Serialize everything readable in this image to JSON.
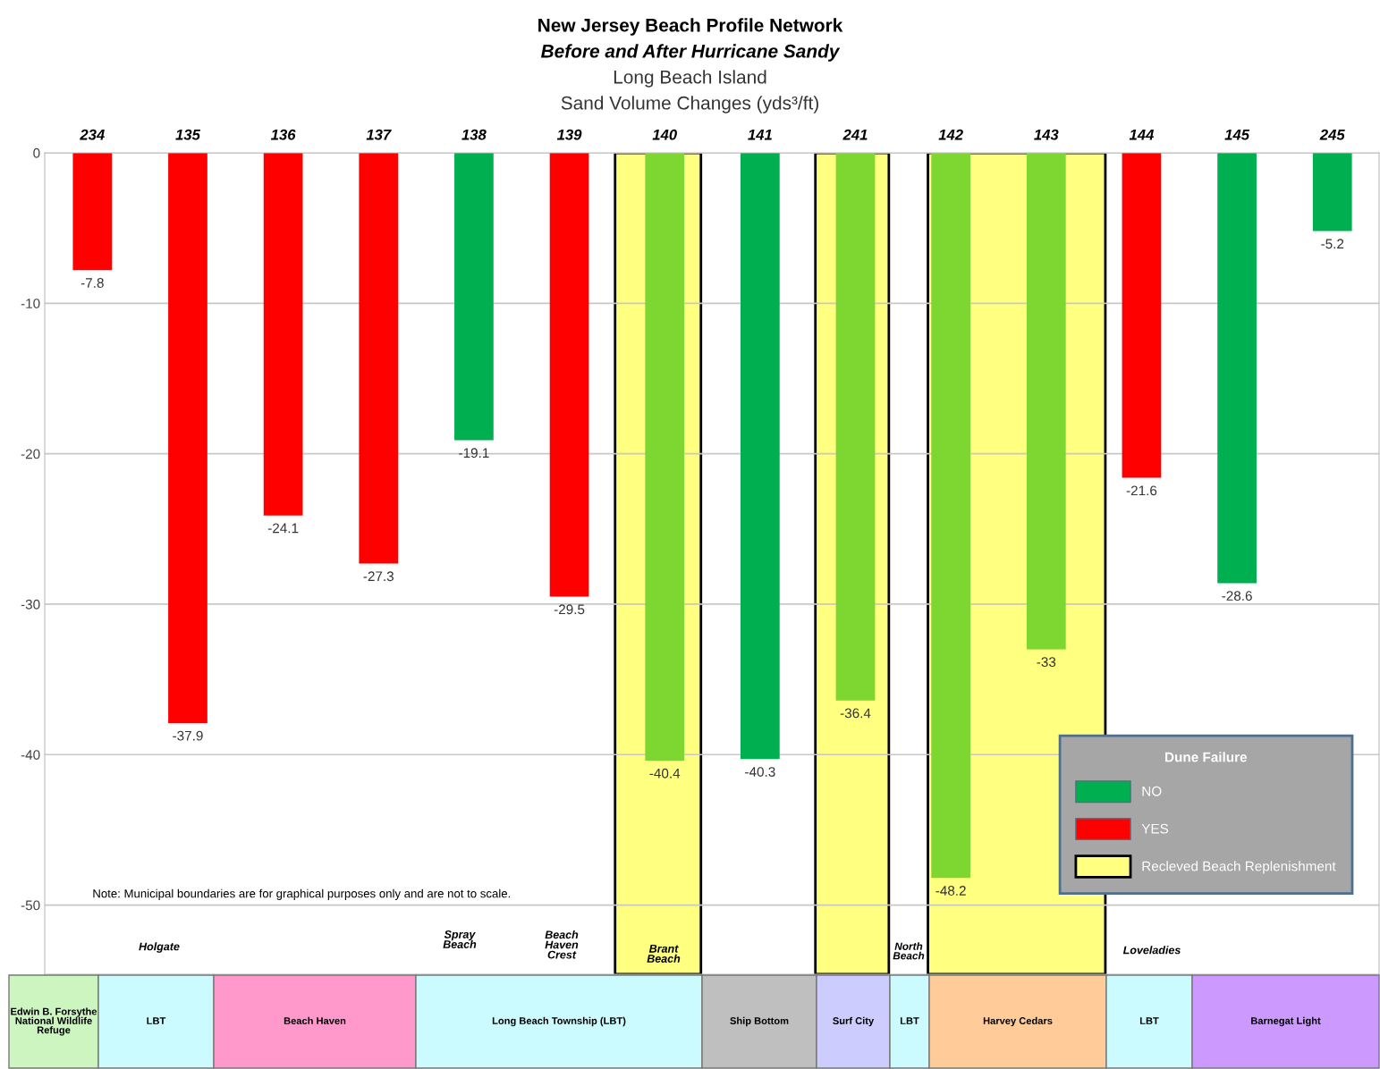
{
  "chart_data": {
    "type": "bar",
    "title": "New Jersey Beach Profile Network",
    "subtitle": "Before and After Hurricane Sandy\nLong Beach Island\nSand Volume Changes (yds³/ft)",
    "categories": [
      "234",
      "135",
      "136",
      "137",
      "138",
      "139",
      "140",
      "141",
      "241",
      "142",
      "143",
      "144",
      "145",
      "245"
    ],
    "series": [
      {
        "name": "NO",
        "color": "#00b050",
        "colors": [
          null,
          null,
          null,
          null,
          "#00b050",
          null,
          "#7ed631",
          "#00b050",
          "#7ed631",
          "#7ed631",
          "#7ed631",
          null,
          "#00b050",
          "#00b050"
        ],
        "values": [
          null,
          null,
          null,
          null,
          -19.1,
          null,
          -40.4,
          -40.3,
          -36.4,
          -48.2,
          -33,
          null,
          -28.6,
          -5.2
        ]
      },
      {
        "name": "YES",
        "color": "#ff0000",
        "values": [
          -7.8,
          -37.9,
          -24.1,
          -27.3,
          null,
          -29.5,
          null,
          null,
          null,
          null,
          null,
          -21.6,
          null,
          null
        ]
      }
    ],
    "data_labels": true,
    "ylim": [
      -54.6,
      0
    ],
    "yticks": [
      -50,
      -40,
      -30,
      -20,
      -10,
      0
    ],
    "grid": "y",
    "legend": "lower right",
    "legend_title": "Dune Failure",
    "bands": [
      {
        "axis": "x",
        "from": "140",
        "to": "140",
        "label": null,
        "color": "#ffff80"
      },
      {
        "axis": "x",
        "from": "241",
        "to": "241",
        "label": null,
        "color": "#ffff80"
      },
      {
        "axis": "x",
        "from": "142",
        "to": "143",
        "label": null,
        "color": "#ffff80"
      }
    ],
    "annotations": [
      "Note: Municipal boundaries are for graphical purposes only and are not to scale.",
      "Holgate",
      "Spray\nBeach",
      "Beach\nHaven\nCrest",
      "Brant\nBeach",
      "North\nBeach",
      "Loveladies",
      "Edwin B. Forsythe\nNational Wildlife\nRefuge",
      "LBT",
      "Beach Haven",
      "Long Beach Township (LBT)",
      "Ship Bottom",
      "Surf City",
      "LBT",
      "Harvey Cedars",
      "LBT",
      "Barnegat Light",
      "Recleved Beach Replenishment"
    ]
  }
}
